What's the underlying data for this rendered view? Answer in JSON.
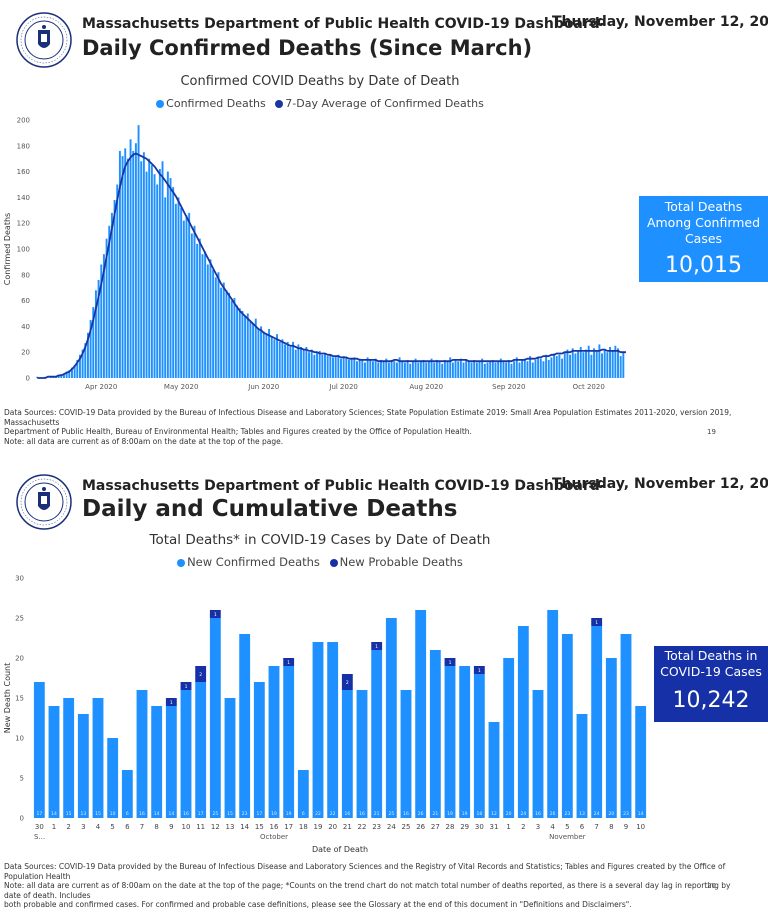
{
  "pages": [
    {
      "header_line1": "Massachusetts Department of Public Health COVID-19 Dashboard-",
      "header_title": "Daily Confirmed Deaths (Since March)",
      "date": "Thursday, November 12, 2020",
      "seal_icon": "ma-dph-seal-icon",
      "kpi": {
        "label": "Total Deaths Among Confirmed Cases",
        "value": "10,015",
        "color": "#1e90ff"
      },
      "source_lines": [
        "Data Sources: COVID-19 Data provided by the Bureau of Infectious Disease and Laboratory Sciences; State Population Estimate 2019: Small Area Population Estimates 2011-2020, version 2019, Massachusetts",
        "Department of Public Health, Bureau of Environmental Health; Tables and Figures created by the Office of Population Health.",
        "Note: all data are current as of 8:00am on the date at the top of the page."
      ],
      "page_number": "19"
    },
    {
      "header_line1": "Massachusetts Department of Public Health COVID-19 Dashboard-",
      "header_title": "Daily and Cumulative Deaths",
      "date": "Thursday, November 12, 2020",
      "seal_icon": "ma-dph-seal-icon",
      "kpi": {
        "label": "Total Deaths in COVID-19 Cases",
        "value": "10,242",
        "color": "#1631a8"
      },
      "source_lines": [
        "Data Sources: COVID-19 Data provided by the Bureau of Infectious Disease and Laboratory Sciences and the Registry of Vital Records and Statistics; Tables and Figures created by the Office of Population Health",
        "Note: all data are current as of 8:00am on the date at the top of the page; *Counts on the trend chart do not match total number of deaths reported, as there is a several day lag in reporting by date of death. Includes",
        "both probable and confirmed cases. For confirmed and probable case definitions, please see the Glossary at the end of this document in \"Definitions and Disclaimers\"."
      ],
      "page_number": "20"
    }
  ],
  "chart_data": [
    {
      "type": "bar",
      "title": "Confirmed COVID Deaths by Date of Death",
      "xlabel": "",
      "ylabel": "Confirmed Deaths",
      "ylim": [
        0,
        200
      ],
      "yticks": [
        0,
        20,
        40,
        60,
        80,
        100,
        120,
        140,
        160,
        180,
        200
      ],
      "x_start": "2020-03-08",
      "x_tick_labels": [
        "Apr 2020",
        "May 2020",
        "Jun 2020",
        "Jul 2020",
        "Aug 2020",
        "Sep 2020",
        "Oct 2020",
        "Nov 2020"
      ],
      "x_tick_dates": [
        "2020-04-01",
        "2020-05-01",
        "2020-06-01",
        "2020-07-01",
        "2020-08-01",
        "2020-09-01",
        "2020-10-01",
        "2020-11-01"
      ],
      "legend_position": "top-center",
      "grid": false,
      "series": [
        {
          "name": "Confirmed Deaths",
          "kind": "bar",
          "color": "#1e90ff",
          "values": [
            1,
            0,
            0,
            1,
            0,
            1,
            1,
            1,
            2,
            3,
            3,
            5,
            6,
            8,
            10,
            14,
            18,
            22,
            27,
            35,
            45,
            55,
            68,
            76,
            88,
            96,
            108,
            118,
            128,
            138,
            150,
            176,
            172,
            178,
            170,
            185,
            176,
            182,
            196,
            168,
            175,
            160,
            170,
            165,
            158,
            150,
            162,
            168,
            140,
            160,
            155,
            148,
            135,
            140,
            132,
            122,
            126,
            128,
            112,
            118,
            104,
            108,
            96,
            98,
            88,
            92,
            84,
            78,
            82,
            70,
            74,
            68,
            66,
            60,
            62,
            56,
            54,
            52,
            48,
            50,
            44,
            42,
            46,
            38,
            40,
            36,
            34,
            38,
            32,
            30,
            34,
            28,
            30,
            26,
            28,
            24,
            28,
            22,
            26,
            24,
            22,
            24,
            20,
            22,
            18,
            20,
            21,
            18,
            19,
            17,
            18,
            16,
            17,
            18,
            15,
            17,
            16,
            14,
            15,
            16,
            13,
            15,
            14,
            12,
            16,
            14,
            13,
            15,
            12,
            14,
            13,
            15,
            12,
            14,
            13,
            12,
            16,
            13,
            12,
            14,
            11,
            13,
            15,
            12,
            13,
            14,
            12,
            13,
            15,
            12,
            14,
            13,
            11,
            14,
            13,
            16,
            12,
            14,
            13,
            15,
            12,
            14,
            13,
            12,
            14,
            12,
            13,
            15,
            11,
            12,
            13,
            14,
            12,
            13,
            15,
            13,
            12,
            14,
            11,
            13,
            16,
            12,
            14,
            15,
            13,
            17,
            12,
            14,
            16,
            15,
            13,
            18,
            14,
            16,
            19,
            17,
            18,
            15,
            20,
            22,
            18,
            23,
            19,
            21,
            24,
            20,
            22,
            25,
            18,
            23,
            21,
            26,
            19,
            22,
            20,
            24,
            21,
            25,
            23,
            17,
            20
          ]
        },
        {
          "name": "7-Day Average of Confirmed Deaths",
          "kind": "line",
          "color": "#1a35a0",
          "values": [
            0,
            0,
            0,
            0,
            1,
            1,
            1,
            1,
            2,
            2,
            3,
            4,
            5,
            7,
            9,
            12,
            15,
            19,
            24,
            30,
            37,
            45,
            54,
            63,
            73,
            83,
            94,
            105,
            116,
            127,
            138,
            148,
            157,
            164,
            168,
            171,
            173,
            174,
            173,
            172,
            171,
            170,
            168,
            166,
            164,
            161,
            158,
            156,
            153,
            150,
            147,
            144,
            141,
            137,
            133,
            129,
            125,
            121,
            117,
            113,
            109,
            105,
            101,
            97,
            93,
            89,
            85,
            81,
            77,
            73,
            70,
            67,
            64,
            61,
            58,
            55,
            52,
            50,
            48,
            46,
            44,
            42,
            40,
            38,
            37,
            35,
            34,
            33,
            32,
            31,
            30,
            29,
            28,
            27,
            26,
            25,
            25,
            24,
            23,
            23,
            22,
            22,
            21,
            21,
            20,
            20,
            19,
            19,
            19,
            18,
            18,
            17,
            17,
            17,
            16,
            16,
            16,
            15,
            15,
            15,
            15,
            14,
            14,
            14,
            14,
            14,
            14,
            14,
            13,
            13,
            13,
            13,
            13,
            13,
            14,
            14,
            13,
            13,
            13,
            13,
            13,
            13,
            13,
            13,
            13,
            13,
            13,
            13,
            13,
            13,
            13,
            13,
            13,
            13,
            13,
            13,
            14,
            14,
            14,
            14,
            14,
            14,
            13,
            13,
            13,
            13,
            13,
            13,
            13,
            13,
            13,
            13,
            13,
            13,
            13,
            13,
            13,
            13,
            13,
            14,
            14,
            14,
            14,
            14,
            15,
            15,
            15,
            15,
            16,
            16,
            17,
            17,
            17,
            18,
            18,
            19,
            19,
            19,
            20,
            20,
            20,
            21,
            21,
            21,
            21,
            21,
            21,
            21,
            21,
            21,
            21,
            21,
            22,
            22,
            21,
            21,
            21,
            21,
            21,
            20,
            20,
            20
          ]
        }
      ]
    },
    {
      "type": "bar",
      "stacked": true,
      "title": "Total Deaths* in COVID-19 Cases by Date of Death",
      "xlabel": "Date of Death",
      "ylabel": "New Death Count",
      "ylim": [
        0,
        30
      ],
      "yticks": [
        0,
        5,
        10,
        15,
        20,
        25,
        30
      ],
      "categories": [
        "30",
        "1",
        "2",
        "3",
        "4",
        "5",
        "6",
        "7",
        "8",
        "9",
        "10",
        "11",
        "12",
        "13",
        "14",
        "15",
        "16",
        "17",
        "18",
        "19",
        "20",
        "21",
        "22",
        "23",
        "24",
        "25",
        "26",
        "27",
        "28",
        "29",
        "30",
        "31",
        "1",
        "2",
        "3",
        "4",
        "5",
        "6",
        "7",
        "8",
        "9",
        "10"
      ],
      "month_labels": [
        {
          "label": "S...",
          "index": 0
        },
        {
          "label": "October",
          "index": 16
        },
        {
          "label": "November",
          "index": 36
        }
      ],
      "legend_position": "top-center",
      "grid": false,
      "series": [
        {
          "name": "New Confirmed Deaths",
          "color": "#1e90ff",
          "values": [
            17,
            14,
            15,
            13,
            15,
            10,
            6,
            16,
            14,
            14,
            16,
            17,
            25,
            15,
            23,
            17,
            19,
            19,
            6,
            22,
            22,
            16,
            16,
            21,
            25,
            16,
            26,
            21,
            19,
            19,
            18,
            12,
            20,
            24,
            16,
            26,
            23,
            13,
            24,
            20,
            23,
            14
          ],
          "data_labels": [
            "17",
            "14",
            "15",
            "13",
            "15",
            "10",
            "6",
            "16",
            "14",
            "14",
            "16",
            "17",
            "25",
            "15",
            "23",
            "17",
            "19",
            "19",
            "6",
            "22",
            "22",
            "16",
            "16",
            "21",
            "25",
            "16",
            "26",
            "21",
            "19",
            "19",
            "18",
            "12",
            "20",
            "24",
            "16",
            "26",
            "23",
            "13",
            "24",
            "20",
            "23",
            "14"
          ]
        },
        {
          "name": "New Probable Deaths",
          "color": "#1631a8",
          "values": [
            0,
            0,
            0,
            0,
            0,
            0,
            0,
            0,
            0,
            1,
            1,
            2,
            1,
            0,
            0,
            0,
            0,
            1,
            0,
            0,
            0,
            2,
            0,
            1,
            0,
            0,
            0,
            0,
            1,
            0,
            1,
            0,
            0,
            0,
            0,
            0,
            0,
            0,
            1,
            0,
            0,
            0
          ],
          "data_labels": [
            "",
            "",
            "",
            "",
            "",
            "",
            "",
            "",
            "",
            "1",
            "1",
            "2",
            "1",
            "",
            "",
            "",
            "",
            "1",
            "",
            "",
            "",
            "2",
            "",
            "1",
            "",
            "",
            "",
            "",
            "1",
            "",
            "1",
            "",
            "",
            "",
            "",
            "",
            "",
            "",
            "1",
            "",
            "",
            ""
          ]
        }
      ]
    }
  ]
}
